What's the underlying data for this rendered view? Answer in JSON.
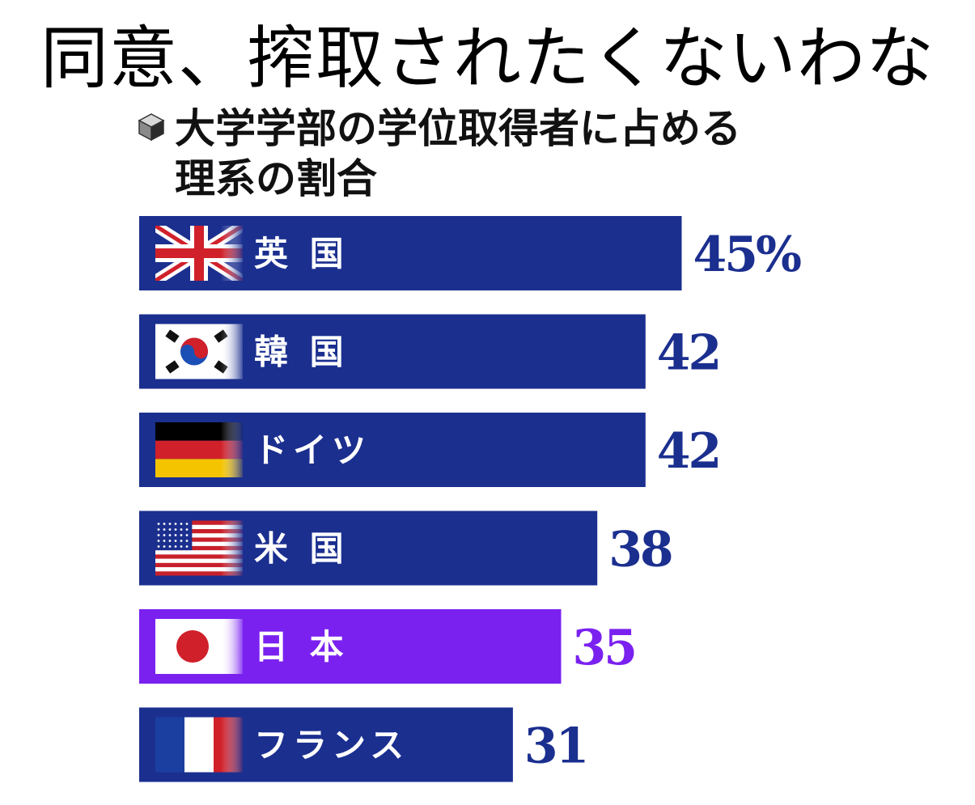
{
  "headline": "同意、搾取されたくないわな",
  "chart_data": {
    "type": "bar",
    "orientation": "horizontal",
    "title": "大学学部の学位取得者に占める理系の割合",
    "title_lines": [
      "大学学部の学位取得者に占める",
      "理系の割合"
    ],
    "unit": "%",
    "categories": [
      "英国",
      "韓国",
      "ドイツ",
      "米国",
      "日本",
      "フランス"
    ],
    "display_labels": [
      "英 国",
      "韓 国",
      "ドイツ",
      "米 国",
      "日 本",
      "フランス"
    ],
    "values": [
      45,
      42,
      42,
      38,
      35,
      31
    ],
    "value_labels": [
      "45%",
      "42",
      "42",
      "38",
      "35",
      "31"
    ],
    "flags": [
      "uk-flag",
      "south-korea-flag",
      "germany-flag",
      "us-flag",
      "japan-flag",
      "france-flag"
    ],
    "highlight_category": "日本",
    "colors": {
      "bar": "#1b2f8f",
      "highlight_bar": "#7a21f0",
      "value_text": "#1b2f8f",
      "highlight_value_text": "#7a21f0"
    }
  }
}
